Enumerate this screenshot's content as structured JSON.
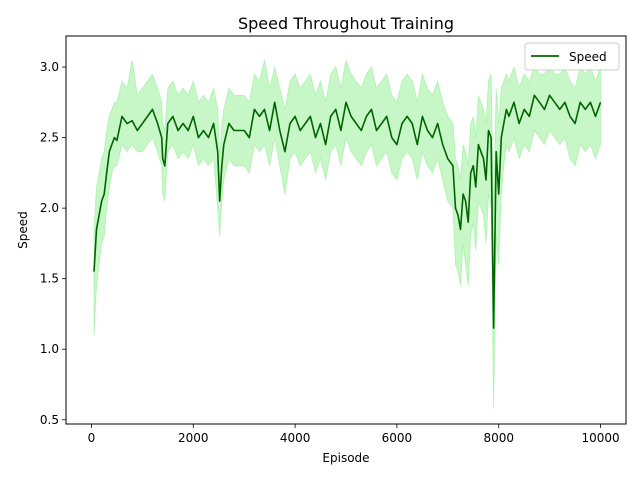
{
  "chart_data": {
    "type": "line",
    "title": "Speed Throughout Training",
    "xlabel": "Episode",
    "ylabel": "Speed",
    "xlim": [
      -500,
      10500
    ],
    "ylim": [
      0.47,
      3.22
    ],
    "xticks": [
      0,
      2000,
      4000,
      6000,
      8000,
      10000
    ],
    "xtick_labels": [
      "0",
      "2000",
      "4000",
      "6000",
      "8000",
      "10000"
    ],
    "yticks": [
      0.5,
      1.0,
      1.5,
      2.0,
      2.5,
      3.0
    ],
    "ytick_labels": [
      "0.5",
      "1.0",
      "1.5",
      "2.0",
      "2.5",
      "3.0"
    ],
    "grid": false,
    "legend_position": "top-right",
    "colors": {
      "line": "#006400",
      "band": "#90ee90"
    },
    "series": [
      {
        "name": "Speed",
        "x": [
          50,
          100,
          150,
          200,
          250,
          300,
          350,
          400,
          450,
          500,
          600,
          700,
          800,
          900,
          1000,
          1100,
          1200,
          1300,
          1380,
          1400,
          1440,
          1500,
          1600,
          1700,
          1800,
          1900,
          2000,
          2100,
          2200,
          2300,
          2400,
          2480,
          2520,
          2560,
          2600,
          2700,
          2800,
          2900,
          3000,
          3100,
          3200,
          3300,
          3400,
          3500,
          3600,
          3700,
          3800,
          3900,
          4000,
          4100,
          4200,
          4300,
          4400,
          4500,
          4600,
          4700,
          4800,
          4900,
          5000,
          5100,
          5200,
          5300,
          5400,
          5500,
          5600,
          5700,
          5800,
          5900,
          6000,
          6100,
          6200,
          6300,
          6400,
          6500,
          6600,
          6700,
          6800,
          6900,
          7000,
          7100,
          7150,
          7200,
          7250,
          7300,
          7350,
          7400,
          7450,
          7500,
          7550,
          7600,
          7650,
          7700,
          7750,
          7800,
          7850,
          7900,
          7950,
          8000,
          8050,
          8100,
          8150,
          8200,
          8300,
          8400,
          8500,
          8600,
          8700,
          8800,
          8900,
          9000,
          9100,
          9200,
          9300,
          9400,
          9500,
          9600,
          9700,
          9800,
          9900,
          10000
        ],
        "values": [
          1.55,
          1.85,
          1.95,
          2.05,
          2.1,
          2.25,
          2.4,
          2.45,
          2.5,
          2.48,
          2.65,
          2.6,
          2.62,
          2.55,
          2.6,
          2.65,
          2.7,
          2.6,
          2.5,
          2.35,
          2.3,
          2.6,
          2.65,
          2.55,
          2.6,
          2.55,
          2.65,
          2.5,
          2.55,
          2.5,
          2.6,
          2.4,
          2.05,
          2.3,
          2.45,
          2.6,
          2.55,
          2.55,
          2.55,
          2.5,
          2.7,
          2.65,
          2.7,
          2.55,
          2.75,
          2.55,
          2.4,
          2.6,
          2.65,
          2.55,
          2.6,
          2.65,
          2.5,
          2.6,
          2.45,
          2.65,
          2.7,
          2.55,
          2.75,
          2.65,
          2.6,
          2.55,
          2.65,
          2.7,
          2.55,
          2.6,
          2.65,
          2.5,
          2.45,
          2.6,
          2.65,
          2.6,
          2.45,
          2.65,
          2.55,
          2.5,
          2.6,
          2.45,
          2.35,
          2.3,
          2.0,
          1.95,
          1.85,
          2.1,
          2.05,
          1.9,
          2.25,
          2.3,
          2.15,
          2.45,
          2.4,
          2.35,
          2.2,
          2.55,
          2.5,
          1.15,
          2.4,
          2.1,
          2.5,
          2.6,
          2.7,
          2.65,
          2.75,
          2.6,
          2.7,
          2.65,
          2.8,
          2.75,
          2.7,
          2.8,
          2.75,
          2.7,
          2.75,
          2.65,
          2.6,
          2.75,
          2.7,
          2.75,
          2.65,
          2.75
        ],
        "lower": [
          1.1,
          1.45,
          1.6,
          1.75,
          1.8,
          2.0,
          2.15,
          2.25,
          2.3,
          2.3,
          2.45,
          2.4,
          2.45,
          2.4,
          2.4,
          2.45,
          2.5,
          2.4,
          2.3,
          2.1,
          2.05,
          2.4,
          2.45,
          2.35,
          2.4,
          2.35,
          2.45,
          2.3,
          2.35,
          2.3,
          2.35,
          2.0,
          1.8,
          2.05,
          2.2,
          2.35,
          2.3,
          2.3,
          2.3,
          2.25,
          2.45,
          2.4,
          2.45,
          2.3,
          2.5,
          2.3,
          2.1,
          2.35,
          2.4,
          2.3,
          2.35,
          2.4,
          2.25,
          2.35,
          2.2,
          2.4,
          2.45,
          2.3,
          2.5,
          2.4,
          2.35,
          2.3,
          2.4,
          2.45,
          2.3,
          2.35,
          2.4,
          2.25,
          2.2,
          2.35,
          2.4,
          2.35,
          2.2,
          2.4,
          2.3,
          2.25,
          2.35,
          2.2,
          2.05,
          2.0,
          1.6,
          1.55,
          1.45,
          1.75,
          1.6,
          1.45,
          1.8,
          1.9,
          1.7,
          2.05,
          2.0,
          1.95,
          1.75,
          2.1,
          2.0,
          0.58,
          1.8,
          1.6,
          2.1,
          2.3,
          2.45,
          2.4,
          2.5,
          2.35,
          2.45,
          2.4,
          2.55,
          2.5,
          2.45,
          2.55,
          2.5,
          2.45,
          2.5,
          2.35,
          2.3,
          2.45,
          2.4,
          2.45,
          2.35,
          2.45
        ],
        "upper": [
          1.85,
          2.15,
          2.25,
          2.35,
          2.4,
          2.55,
          2.65,
          2.7,
          2.75,
          2.75,
          2.9,
          2.85,
          3.05,
          2.8,
          2.85,
          2.9,
          2.95,
          2.85,
          2.75,
          2.6,
          2.55,
          2.85,
          2.9,
          2.8,
          2.85,
          2.8,
          2.9,
          2.75,
          2.8,
          2.75,
          2.85,
          2.7,
          2.35,
          2.6,
          2.7,
          2.85,
          2.8,
          2.8,
          2.8,
          2.75,
          2.95,
          2.9,
          3.05,
          2.85,
          3.0,
          2.85,
          2.7,
          2.9,
          2.95,
          2.85,
          2.9,
          2.95,
          2.8,
          2.9,
          2.75,
          2.95,
          3.0,
          2.85,
          3.05,
          2.95,
          2.9,
          2.85,
          2.95,
          3.0,
          2.85,
          2.9,
          2.95,
          2.8,
          2.75,
          2.9,
          2.95,
          2.9,
          2.75,
          2.95,
          2.85,
          2.8,
          2.9,
          2.75,
          2.65,
          2.6,
          2.35,
          2.3,
          2.2,
          2.45,
          2.4,
          2.3,
          2.6,
          2.65,
          2.5,
          2.8,
          2.75,
          2.7,
          2.6,
          2.9,
          2.95,
          1.95,
          2.85,
          2.6,
          2.85,
          2.9,
          2.95,
          2.9,
          3.0,
          2.85,
          2.95,
          2.9,
          3.0,
          2.95,
          2.95,
          3.0,
          2.95,
          2.95,
          3.0,
          2.9,
          2.85,
          3.0,
          2.95,
          3.0,
          2.9,
          3.0
        ]
      }
    ]
  }
}
